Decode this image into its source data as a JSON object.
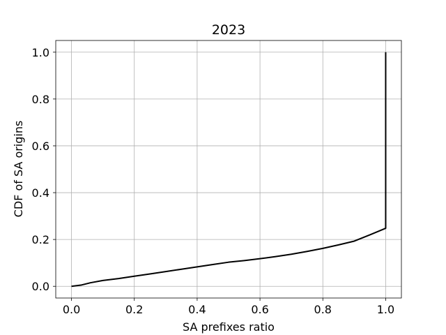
{
  "chart_data": {
    "type": "line",
    "title": "2023",
    "xlabel": "SA prefixes ratio",
    "ylabel": "CDF of SA origins",
    "xlim": [
      -0.05,
      1.05
    ],
    "ylim": [
      -0.05,
      1.05
    ],
    "xticks": [
      0.0,
      0.2,
      0.4,
      0.6,
      0.8,
      1.0
    ],
    "yticks": [
      0.0,
      0.2,
      0.4,
      0.6,
      0.8,
      1.0
    ],
    "xtick_labels": [
      "0.0",
      "0.2",
      "0.4",
      "0.6",
      "0.8",
      "1.0"
    ],
    "ytick_labels": [
      "0.0",
      "0.2",
      "0.4",
      "0.6",
      "0.8",
      "1.0"
    ],
    "grid": true,
    "line_color": "#000000",
    "series": [
      {
        "x": [
          0.0,
          0.03,
          0.06,
          0.1,
          0.15,
          0.2,
          0.25,
          0.3,
          0.35,
          0.4,
          0.45,
          0.5,
          0.55,
          0.6,
          0.65,
          0.7,
          0.75,
          0.8,
          0.85,
          0.9,
          0.95,
          1.0,
          1.0
        ],
        "y": [
          0.0,
          0.005,
          0.015,
          0.025,
          0.033,
          0.043,
          0.053,
          0.063,
          0.073,
          0.083,
          0.093,
          0.103,
          0.11,
          0.118,
          0.127,
          0.137,
          0.149,
          0.162,
          0.177,
          0.193,
          0.22,
          0.248,
          1.0
        ]
      }
    ]
  }
}
